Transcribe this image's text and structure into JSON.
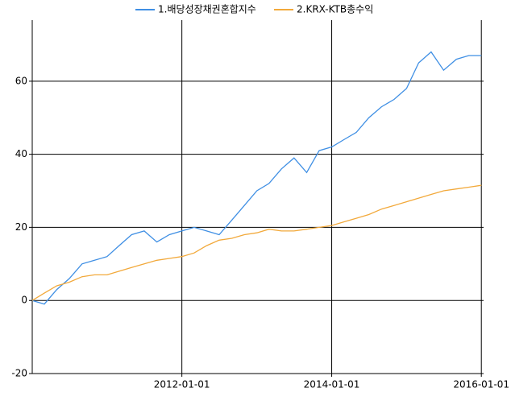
{
  "chart_data": {
    "type": "line",
    "x": [
      "2010-01-01",
      "2010-03-01",
      "2010-05-01",
      "2010-07-01",
      "2010-09-01",
      "2010-11-01",
      "2011-01-01",
      "2011-03-01",
      "2011-05-01",
      "2011-07-01",
      "2011-09-01",
      "2011-11-01",
      "2012-01-01",
      "2012-03-01",
      "2012-05-01",
      "2012-07-01",
      "2012-09-01",
      "2012-11-01",
      "2013-01-01",
      "2013-03-01",
      "2013-05-01",
      "2013-07-01",
      "2013-09-01",
      "2013-11-01",
      "2014-01-01",
      "2014-03-01",
      "2014-05-01",
      "2014-07-01",
      "2014-09-01",
      "2014-11-01",
      "2015-01-01",
      "2015-03-01",
      "2015-05-01",
      "2015-07-01",
      "2015-09-01",
      "2015-11-01",
      "2016-01-01"
    ],
    "series": [
      {
        "name": "1.배당성장채권혼합지수",
        "color": "#3f8fe4",
        "values": [
          0,
          -1,
          3,
          6,
          10,
          11,
          12,
          15,
          18,
          19,
          16,
          18,
          19,
          20,
          19,
          18,
          22,
          26,
          30,
          32,
          36,
          39,
          35,
          41,
          42,
          44,
          46,
          50,
          53,
          55,
          58,
          65,
          68,
          63,
          66,
          67,
          67
        ]
      },
      {
        "name": "2.KRX-KTB총수익",
        "color": "#f2a93b",
        "values": [
          0,
          2,
          4,
          5,
          6.5,
          7,
          7,
          8,
          9,
          10,
          11,
          11.5,
          12,
          13,
          15,
          16.5,
          17,
          18,
          18.5,
          19.5,
          19,
          19,
          19.5,
          20,
          20.5,
          21.5,
          22.5,
          23.5,
          25,
          26,
          27,
          28,
          29,
          30,
          30.5,
          31,
          31.5
        ]
      }
    ],
    "xlim": [
      "2010-01-01",
      "2016-01-12"
    ],
    "xticks": [
      "2012-01-01",
      "2014-01-01",
      "2016-01-01"
    ],
    "ylim": [
      -20,
      76.7
    ],
    "yticks": [
      -20,
      0,
      20,
      40,
      60
    ],
    "grid": true
  }
}
